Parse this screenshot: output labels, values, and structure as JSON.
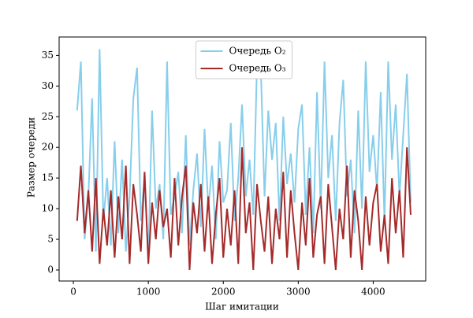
{
  "chart_data": {
    "type": "line",
    "xlabel": "Шаг имитации",
    "ylabel": "Размер очереди",
    "x": [
      50,
      100,
      150,
      200,
      250,
      300,
      350,
      400,
      450,
      500,
      550,
      600,
      650,
      700,
      750,
      800,
      850,
      900,
      950,
      1000,
      1050,
      1100,
      1150,
      1200,
      1250,
      1300,
      1350,
      1400,
      1450,
      1500,
      1550,
      1600,
      1650,
      1700,
      1750,
      1800,
      1850,
      1900,
      1950,
      2000,
      2050,
      2100,
      2150,
      2200,
      2250,
      2300,
      2350,
      2400,
      2450,
      2500,
      2550,
      2600,
      2650,
      2700,
      2750,
      2800,
      2850,
      2900,
      2950,
      3000,
      3050,
      3100,
      3150,
      3200,
      3250,
      3300,
      3350,
      3400,
      3450,
      3500,
      3550,
      3600,
      3650,
      3700,
      3750,
      3800,
      3850,
      3900,
      3950,
      4000,
      4050,
      4100,
      4150,
      4200,
      4250,
      4300,
      4350,
      4400,
      4450,
      4500
    ],
    "series": [
      {
        "name": "Очередь O₂",
        "color": "#87ceeb",
        "values": [
          26,
          34,
          5,
          12,
          28,
          3,
          36,
          8,
          15,
          4,
          21,
          6,
          18,
          3,
          12,
          28,
          33,
          8,
          15,
          2,
          26,
          10,
          14,
          5,
          34,
          9,
          12,
          16,
          6,
          22,
          4,
          13,
          19,
          7,
          23,
          10,
          17,
          5,
          21,
          11,
          13,
          24,
          8,
          15,
          27,
          12,
          18,
          9,
          34,
          33,
          12,
          26,
          18,
          24,
          8,
          25,
          14,
          19,
          11,
          23,
          27,
          9,
          20,
          6,
          29,
          10,
          34,
          15,
          22,
          8,
          24,
          31,
          12,
          18,
          6,
          26,
          10,
          34,
          16,
          22,
          13,
          29,
          8,
          34,
          18,
          27,
          12,
          22,
          32,
          11
        ]
      },
      {
        "name": "Очередь O₃",
        "color": "#a52a2a",
        "values": [
          8,
          17,
          6,
          13,
          3,
          15,
          1,
          10,
          4,
          13,
          2,
          12,
          5,
          17,
          1,
          14,
          9,
          3,
          16,
          1,
          11,
          5,
          13,
          7,
          10,
          2,
          15,
          4,
          12,
          17,
          0,
          11,
          6,
          14,
          3,
          12,
          1,
          9,
          15,
          2,
          10,
          4,
          13,
          1,
          20,
          6,
          11,
          0,
          14,
          8,
          3,
          12,
          1,
          10,
          5,
          16,
          2,
          13,
          6,
          0,
          11,
          4,
          15,
          2,
          9,
          12,
          1,
          14,
          7,
          0,
          10,
          5,
          17,
          2,
          13,
          8,
          0,
          12,
          4,
          11,
          14,
          3,
          9,
          1,
          15,
          6,
          13,
          2,
          20,
          9
        ]
      }
    ],
    "xlim": [
      -190,
      4700
    ],
    "ylim": [
      -1.8,
      38
    ],
    "xticks": [
      0,
      1000,
      2000,
      3000,
      4000
    ],
    "yticks": [
      0,
      5,
      10,
      15,
      20,
      25,
      30,
      35
    ],
    "legend": "upper center"
  }
}
